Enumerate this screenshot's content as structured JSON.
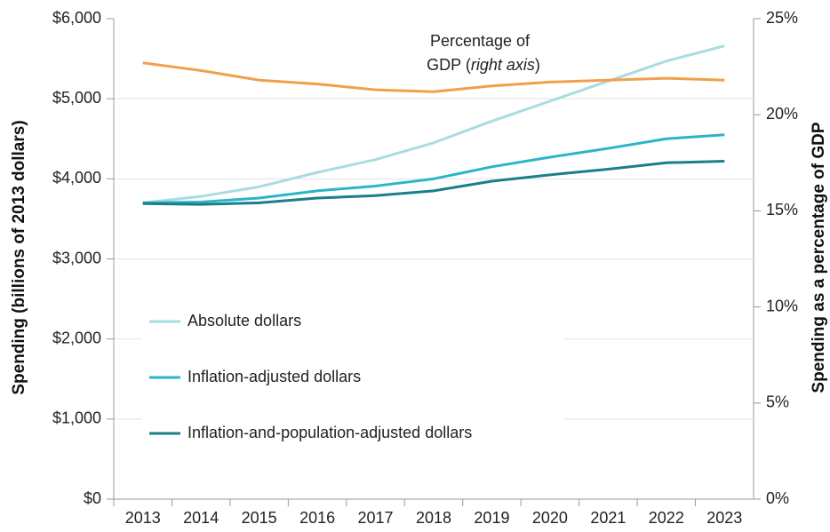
{
  "chart_data": {
    "type": "line",
    "annotation": [
      "Percentage of",
      "GDP (",
      "right axis",
      ")"
    ],
    "ylabel": "Spending (billions of 2013 dollars)",
    "y2label": "Spending as a percentage of GDP",
    "categories": [
      "2013",
      "2014",
      "2015",
      "2016",
      "2017",
      "2018",
      "2019",
      "2020",
      "2021",
      "2022",
      "2023"
    ],
    "series": [
      {
        "name": "Absolute dollars",
        "color": "#a8dce0",
        "values": [
          3700,
          3780,
          3900,
          4080,
          4240,
          4450,
          4720,
          4970,
          5220,
          5470,
          5660
        ]
      },
      {
        "name": "Inflation-adjusted dollars",
        "color": "#2bb5c8",
        "values": [
          3700,
          3710,
          3760,
          3850,
          3910,
          4000,
          4150,
          4270,
          4380,
          4500,
          4550
        ]
      },
      {
        "name": "Inflation-and-population-adjusted dollars",
        "color": "#1a7f8a",
        "values": [
          3690,
          3680,
          3700,
          3760,
          3790,
          3850,
          3970,
          4050,
          4120,
          4200,
          4220
        ]
      },
      {
        "name": "Percentage of GDP",
        "color": "#f0a04b",
        "axis": "y2",
        "legend": false,
        "values": [
          22.7,
          22.3,
          21.8,
          21.6,
          21.3,
          21.2,
          21.5,
          21.7,
          21.8,
          21.9,
          21.8
        ]
      }
    ],
    "ylim": [
      0,
      6000
    ],
    "yticks": [
      {
        "value": 0,
        "label": "$0"
      },
      {
        "value": 1000,
        "label": "$1,000"
      },
      {
        "value": 2000,
        "label": "$2,000"
      },
      {
        "value": 3000,
        "label": "$3,000"
      },
      {
        "value": 4000,
        "label": "$4,000"
      },
      {
        "value": 5000,
        "label": "$5,000"
      },
      {
        "value": 6000,
        "label": "$6,000"
      }
    ],
    "y2lim": [
      0,
      25
    ],
    "y2ticks": [
      {
        "value": 0,
        "label": "0%"
      },
      {
        "value": 5,
        "label": "5%"
      },
      {
        "value": 10,
        "label": "10%"
      },
      {
        "value": 15,
        "label": "15%"
      },
      {
        "value": 20,
        "label": "20%"
      },
      {
        "value": 25,
        "label": "25%"
      }
    ],
    "grid": true
  }
}
